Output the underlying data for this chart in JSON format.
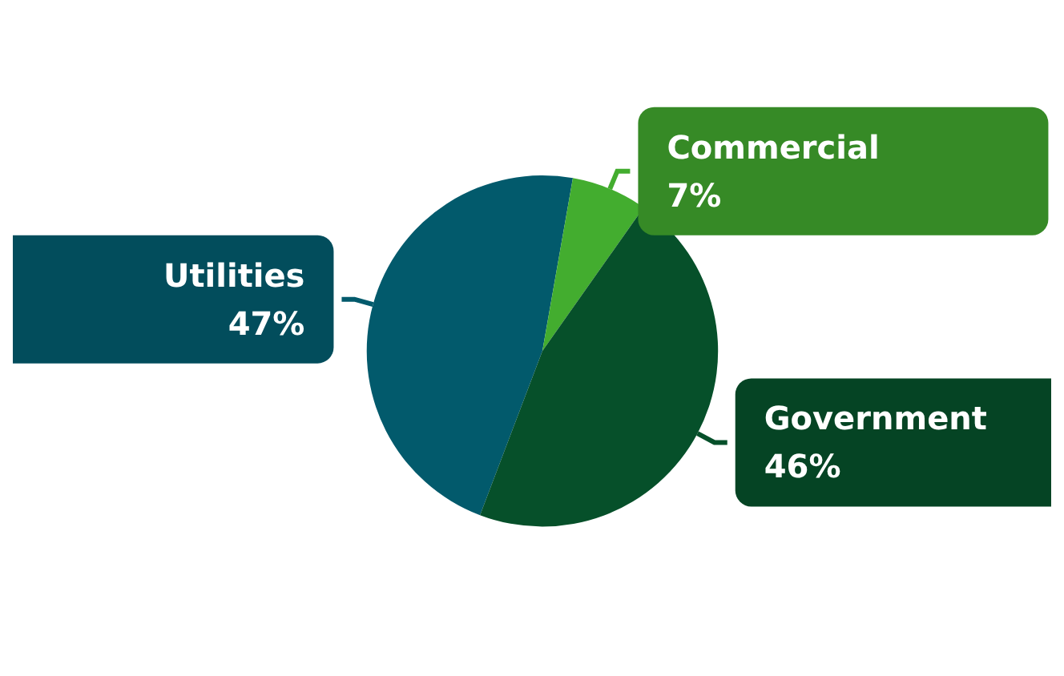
{
  "chart_data": {
    "type": "pie",
    "categories": [
      "Utilities",
      "Commercial",
      "Government"
    ],
    "values": [
      47,
      7,
      46
    ],
    "colors": [
      "#025a6c",
      "#43ad2f",
      "#06502a"
    ],
    "value_labels": [
      "47%",
      "7%",
      "46%"
    ],
    "legend": false
  }
}
